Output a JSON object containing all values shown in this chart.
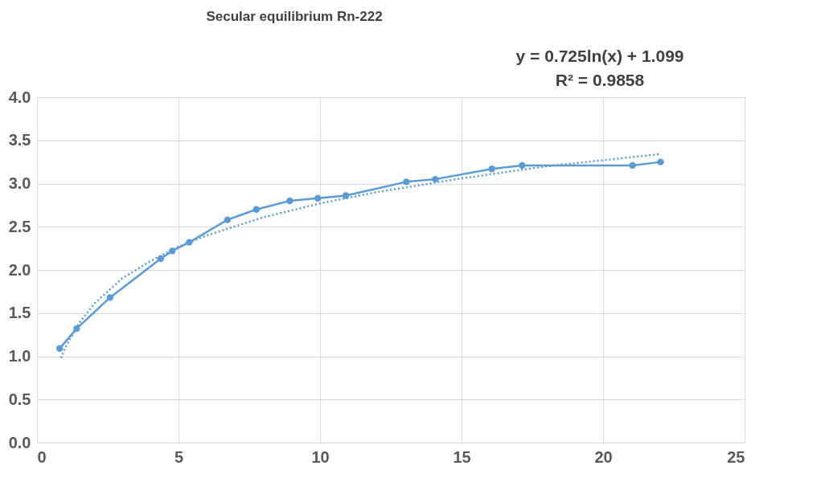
{
  "chart_data": {
    "type": "line",
    "title": "Secular equilibrium Rn-222",
    "annotations": [
      "y = 0.725ln(x) + 1.099",
      "R² = 0.9858"
    ],
    "series": [
      {
        "color": "#5b9bd5",
        "marker": "circle",
        "line_style": "solid",
        "x": [
          0.8,
          1.4,
          2.58,
          4.37,
          4.78,
          5.38,
          6.73,
          7.75,
          8.93,
          9.92,
          10.91,
          13.05,
          14.07,
          16.07,
          17.14,
          21.04,
          22.03
        ],
        "values": [
          1.09,
          1.32,
          1.68,
          2.13,
          2.22,
          2.32,
          2.58,
          2.7,
          2.8,
          2.83,
          2.86,
          3.02,
          3.05,
          3.17,
          3.21,
          3.21,
          3.25
        ]
      },
      {
        "color": "#5b9bd5",
        "marker": "none",
        "line_style": "dotted",
        "x": [
          0.85,
          1,
          1.5,
          2,
          3,
          4,
          5,
          6,
          8,
          10,
          12,
          15,
          18,
          22
        ],
        "values": [
          0.98,
          1.1,
          1.39,
          1.6,
          1.9,
          2.1,
          2.27,
          2.4,
          2.61,
          2.77,
          2.9,
          3.06,
          3.2,
          3.34
        ]
      }
    ],
    "xlim": [
      0,
      25
    ],
    "xticks": [
      0,
      5,
      10,
      15,
      20,
      25
    ],
    "ylim": [
      0,
      4
    ],
    "yticks": [
      {
        "value": 0,
        "label": "0.0"
      },
      {
        "value": 0.5,
        "label": "0.5"
      },
      {
        "value": 1,
        "label": "1.0"
      },
      {
        "value": 1.5,
        "label": "1.5"
      },
      {
        "value": 2,
        "label": "2.0"
      },
      {
        "value": 2.5,
        "label": "2.5"
      },
      {
        "value": 3,
        "label": "3.0"
      },
      {
        "value": 3.5,
        "label": "3.5"
      },
      {
        "value": 4,
        "label": "4.0"
      }
    ],
    "grid": true,
    "legend": false
  }
}
